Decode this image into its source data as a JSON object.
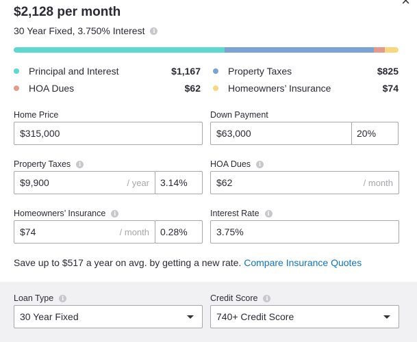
{
  "summary": {
    "monthly_payment": "$2,128 per month",
    "loan_description": "30 Year Fixed, 3.750% Interest"
  },
  "breakdown": [
    {
      "label": "Principal and Interest",
      "value": "$1,167",
      "amount": 1167,
      "color": "#5dd9cd"
    },
    {
      "label": "Property Taxes",
      "value": "$825",
      "amount": 825,
      "color": "#7ba3d5"
    },
    {
      "label": "HOA Dues",
      "value": "$62",
      "amount": 62,
      "color": "#e59b8c"
    },
    {
      "label": "Homeowners’ Insurance",
      "value": "$74",
      "amount": 74,
      "color": "#f9d77f"
    }
  ],
  "fields": {
    "home_price": {
      "label": "Home Price",
      "value": "$315,000"
    },
    "down_payment": {
      "label": "Down Payment",
      "value": "$63,000",
      "percent": "20%"
    },
    "property_taxes": {
      "label": "Property Taxes",
      "value": "$9,900",
      "unit": "/ year",
      "percent": "3.14%"
    },
    "hoa_dues": {
      "label": "HOA Dues",
      "value": "$62",
      "unit": "/ month"
    },
    "homeowners_insurance": {
      "label": "Homeowners’ Insurance",
      "value": "$74",
      "unit": "/ month",
      "percent": "0.28%"
    },
    "interest_rate": {
      "label": "Interest Rate",
      "value": "3.75%"
    }
  },
  "savings": {
    "text": "Save up to $517 a year on avg. by getting a new rate.",
    "link": "Compare Insurance Quotes"
  },
  "footer": {
    "loan_type": {
      "label": "Loan Type",
      "value": "30 Year Fixed"
    },
    "credit_score": {
      "label": "Credit Score",
      "value": "740+ Credit Score"
    }
  },
  "icons": {
    "info": "i",
    "close": "×"
  },
  "colors": {
    "link": "#0f73c5",
    "border": "#a7a6ab",
    "footer_bg": "#f1f1f4"
  }
}
